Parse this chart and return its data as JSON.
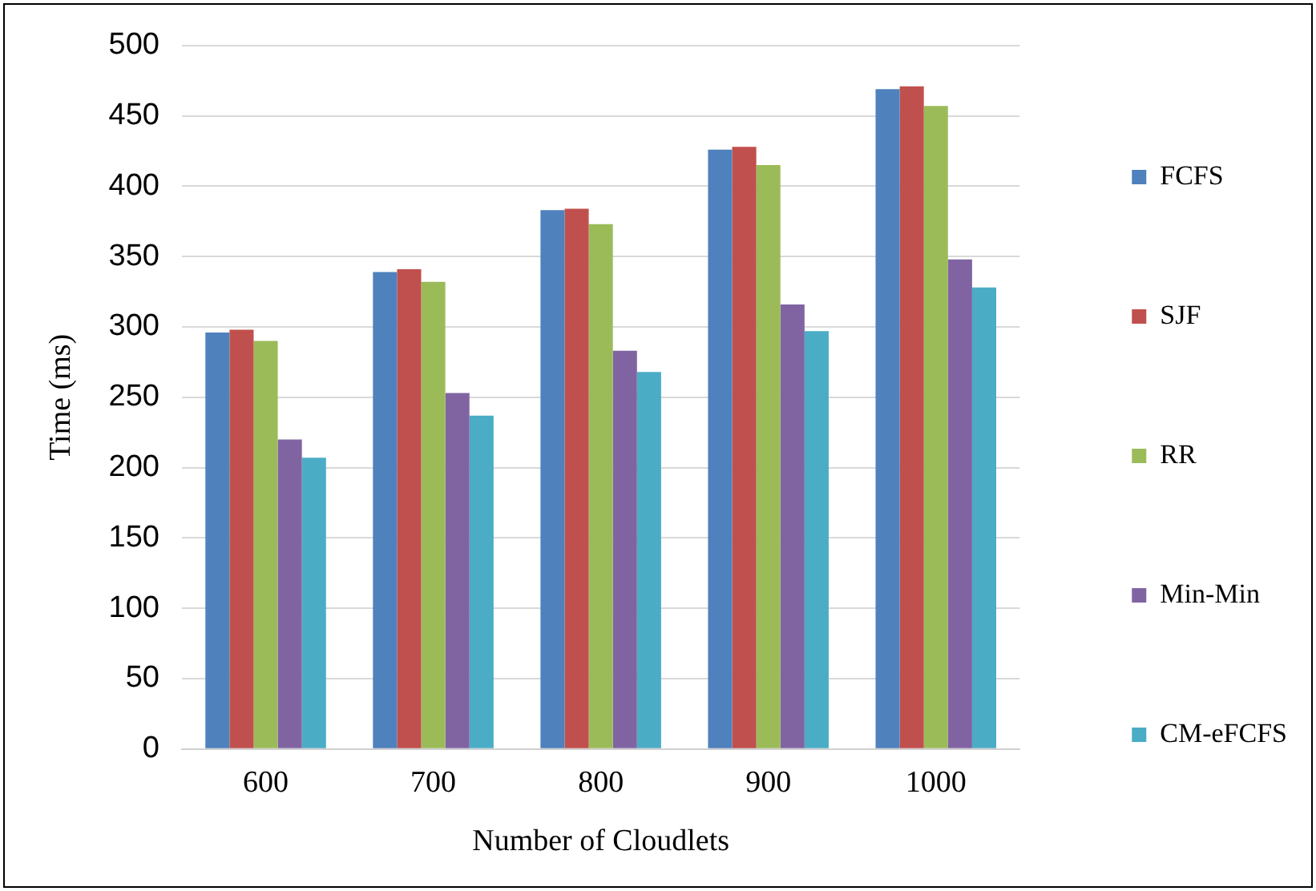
{
  "chart_data": {
    "type": "bar",
    "xlabel": "Number of Cloudlets",
    "ylabel": "Time (ms)",
    "categories": [
      "600",
      "700",
      "800",
      "900",
      "1000"
    ],
    "series": [
      {
        "name": "FCFS",
        "color": "#4f81bd",
        "values": [
          296,
          339,
          383,
          426,
          469
        ]
      },
      {
        "name": "SJF",
        "color": "#c0504d",
        "values": [
          298,
          341,
          384,
          428,
          471
        ]
      },
      {
        "name": "RR",
        "color": "#9bbb59",
        "values": [
          290,
          332,
          373,
          415,
          457
        ]
      },
      {
        "name": "Min-Min",
        "color": "#8064a2",
        "values": [
          220,
          253,
          283,
          316,
          348
        ]
      },
      {
        "name": "CM-eFCFS",
        "color": "#4bacc6",
        "values": [
          207,
          237,
          268,
          297,
          328
        ]
      }
    ],
    "ylim": [
      0,
      500
    ],
    "yticks": [
      0,
      50,
      100,
      150,
      200,
      250,
      300,
      350,
      400,
      450,
      500
    ],
    "grid": "y",
    "legend": "right"
  }
}
